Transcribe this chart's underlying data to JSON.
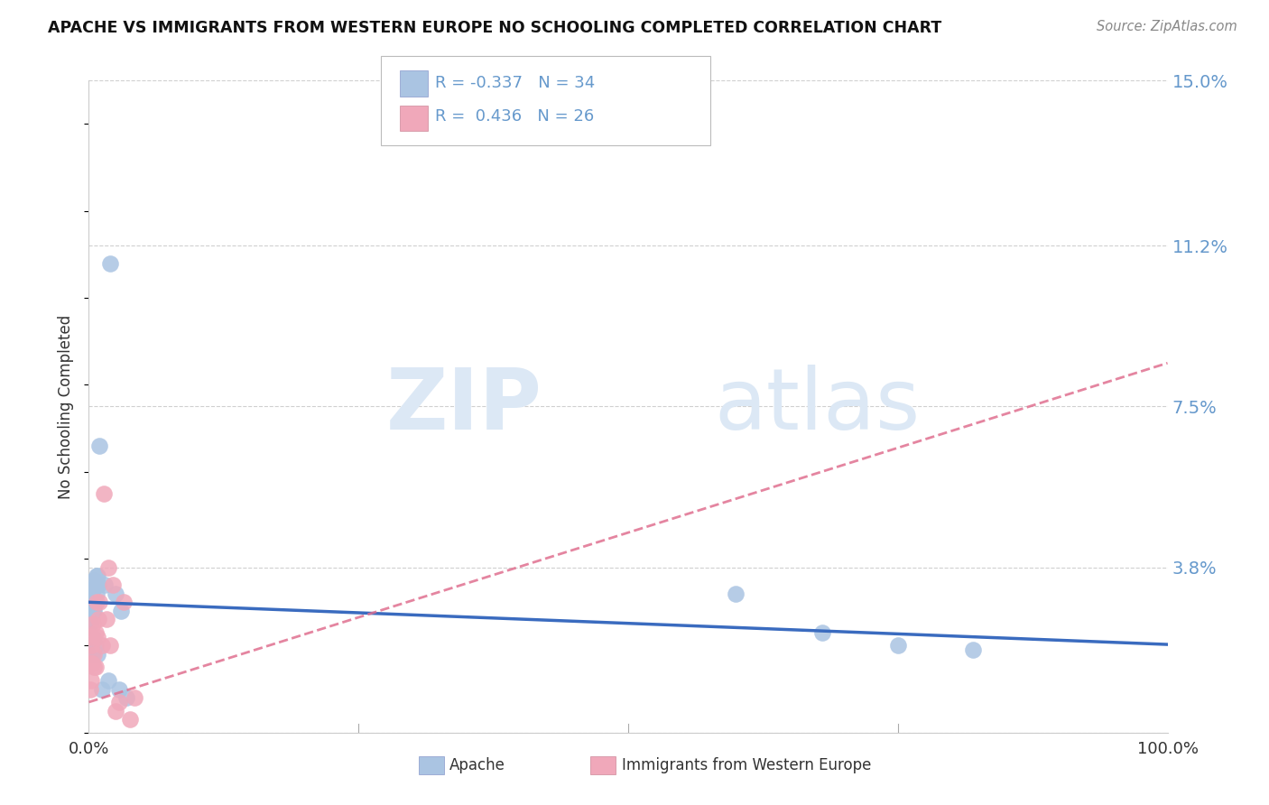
{
  "title": "APACHE VS IMMIGRANTS FROM WESTERN EUROPE NO SCHOOLING COMPLETED CORRELATION CHART",
  "source": "Source: ZipAtlas.com",
  "ylabel": "No Schooling Completed",
  "xlim": [
    0,
    1.0
  ],
  "ylim": [
    0,
    0.15
  ],
  "yticks": [
    0.0,
    0.038,
    0.075,
    0.112,
    0.15
  ],
  "ytick_labels": [
    "",
    "3.8%",
    "7.5%",
    "11.2%",
    "15.0%"
  ],
  "xtick_labels": [
    "0.0%",
    "100.0%"
  ],
  "apache_color": "#aac4e2",
  "imm_color": "#f0a8ba",
  "apache_line_color": "#3a6bbf",
  "imm_line_color": "#e07090",
  "apache_x": [
    0.001,
    0.001,
    0.002,
    0.002,
    0.002,
    0.003,
    0.003,
    0.003,
    0.004,
    0.004,
    0.004,
    0.005,
    0.005,
    0.005,
    0.006,
    0.006,
    0.007,
    0.007,
    0.008,
    0.008,
    0.009,
    0.01,
    0.012,
    0.015,
    0.018,
    0.02,
    0.025,
    0.028,
    0.03,
    0.035,
    0.6,
    0.68,
    0.75,
    0.82
  ],
  "apache_y": [
    0.02,
    0.025,
    0.028,
    0.032,
    0.022,
    0.03,
    0.026,
    0.018,
    0.033,
    0.028,
    0.022,
    0.035,
    0.03,
    0.028,
    0.034,
    0.02,
    0.036,
    0.032,
    0.036,
    0.018,
    0.034,
    0.066,
    0.01,
    0.034,
    0.012,
    0.108,
    0.032,
    0.01,
    0.028,
    0.008,
    0.032,
    0.023,
    0.02,
    0.019
  ],
  "imm_x": [
    0.001,
    0.001,
    0.002,
    0.002,
    0.003,
    0.003,
    0.004,
    0.005,
    0.005,
    0.006,
    0.006,
    0.007,
    0.008,
    0.009,
    0.01,
    0.012,
    0.014,
    0.016,
    0.018,
    0.02,
    0.022,
    0.025,
    0.028,
    0.032,
    0.038,
    0.042
  ],
  "imm_y": [
    0.01,
    0.016,
    0.012,
    0.02,
    0.016,
    0.022,
    0.025,
    0.018,
    0.015,
    0.023,
    0.015,
    0.03,
    0.022,
    0.026,
    0.03,
    0.02,
    0.055,
    0.026,
    0.038,
    0.02,
    0.034,
    0.005,
    0.007,
    0.03,
    0.003,
    0.008
  ],
  "watermark_zip": "ZIP",
  "watermark_atlas": "atlas",
  "background_color": "#ffffff",
  "grid_color": "#d0d0d0",
  "right_axis_color": "#6699cc"
}
